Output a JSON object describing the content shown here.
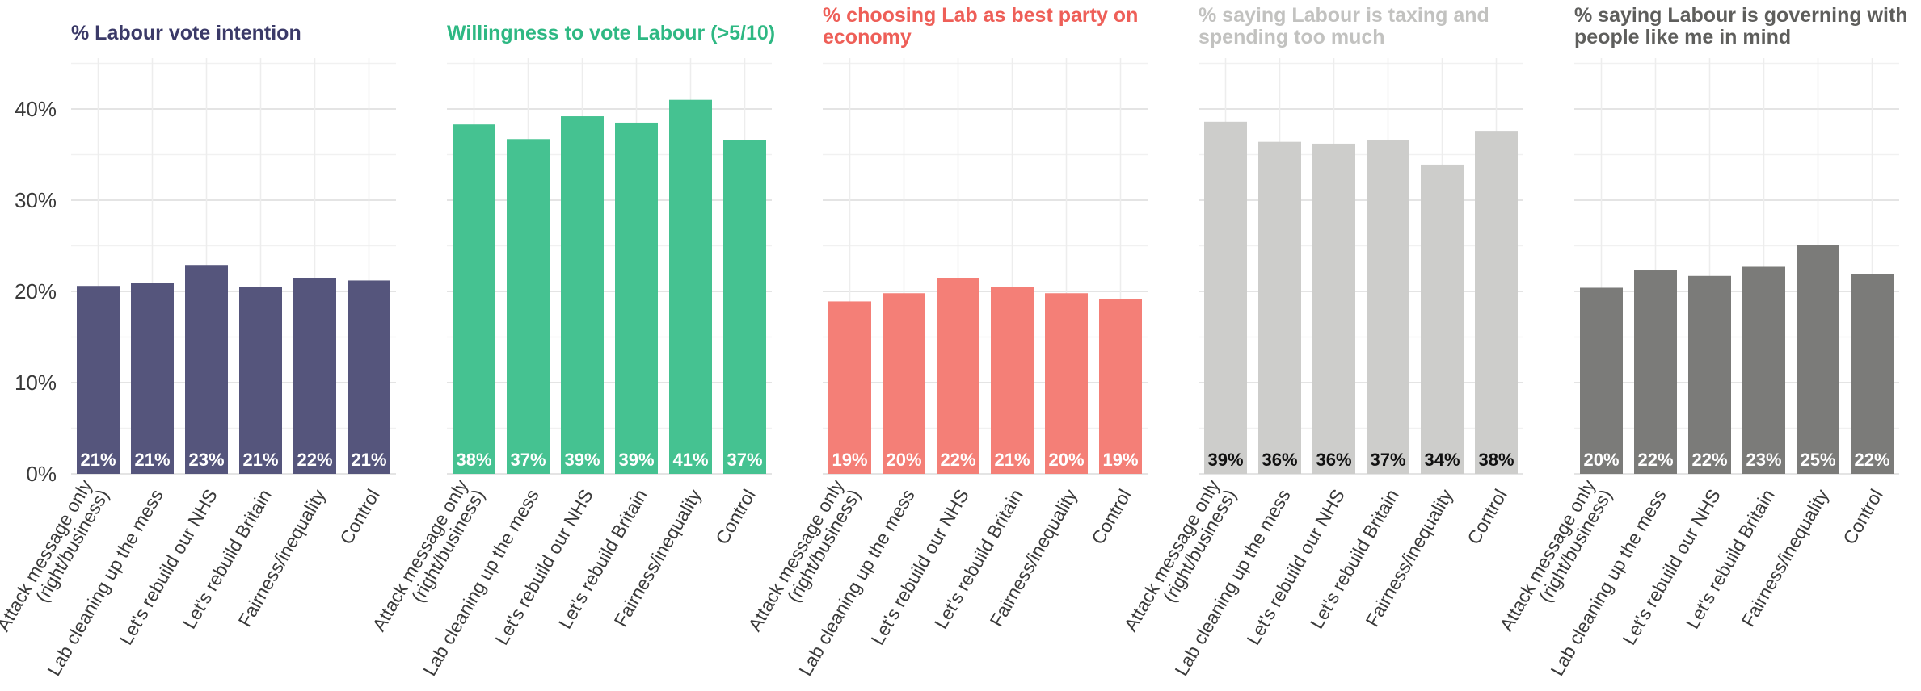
{
  "chart_data": [
    {
      "type": "bar",
      "title": "% Labour vote intention",
      "title_color": "#3b3a68",
      "bar_color": "#55557c",
      "label_color": "#ffffff",
      "categories": [
        "Attack message only (right/business)",
        "Lab cleaning up the mess",
        "Let's rebuild our NHS",
        "Let's rebuild Britain",
        "Fairness/inequality",
        "Control"
      ],
      "values": [
        20.6,
        20.9,
        22.9,
        20.5,
        21.5,
        21.2
      ],
      "data_labels": [
        "21%",
        "21%",
        "23%",
        "21%",
        "22%",
        "21%"
      ],
      "ylim": [
        0,
        45
      ],
      "yticks": [
        "0%",
        "10%",
        "20%",
        "30%",
        "40%"
      ],
      "grid": true
    },
    {
      "type": "bar",
      "title": "Willingness to vote Labour (>5/10)",
      "title_color": "#2eb883",
      "bar_color": "#45c291",
      "label_color": "#ffffff",
      "categories": [
        "Attack message only (right/business)",
        "Lab cleaning up the mess",
        "Let's rebuild our NHS",
        "Let's rebuild Britain",
        "Fairness/inequality",
        "Control"
      ],
      "values": [
        38.3,
        36.7,
        39.2,
        38.5,
        41.0,
        36.6
      ],
      "data_labels": [
        "38%",
        "37%",
        "39%",
        "39%",
        "41%",
        "37%"
      ],
      "ylim": [
        0,
        45
      ],
      "grid": true
    },
    {
      "type": "bar",
      "title": "% choosing Lab as best party on economy",
      "title_color": "#ee5f58",
      "bar_color": "#f47f77",
      "label_color": "#ffffff",
      "categories": [
        "Attack message only (right/business)",
        "Lab cleaning up the mess",
        "Let's rebuild our NHS",
        "Let's rebuild Britain",
        "Fairness/inequality",
        "Control"
      ],
      "values": [
        18.9,
        19.8,
        21.5,
        20.5,
        19.8,
        19.2
      ],
      "data_labels": [
        "19%",
        "20%",
        "22%",
        "21%",
        "20%",
        "19%"
      ],
      "ylim": [
        0,
        45
      ],
      "grid": true
    },
    {
      "type": "bar",
      "title": "% saying Labour is taxing and spending too much",
      "title_color": "#c2c2c0",
      "bar_color": "#cdcdcb",
      "label_color": "#111111",
      "categories": [
        "Attack message only (right/business)",
        "Lab cleaning up the mess",
        "Let's rebuild our NHS",
        "Let's rebuild Britain",
        "Fairness/inequality",
        "Control"
      ],
      "values": [
        38.6,
        36.4,
        36.2,
        36.6,
        33.9,
        37.6
      ],
      "data_labels": [
        "39%",
        "36%",
        "36%",
        "37%",
        "34%",
        "38%"
      ],
      "ylim": [
        0,
        45
      ],
      "grid": true
    },
    {
      "type": "bar",
      "title": "% saying Labour is governing with people like me in mind",
      "title_color": "#5e5e5c",
      "bar_color": "#7b7b79",
      "label_color": "#ffffff",
      "categories": [
        "Attack message only (right/business)",
        "Lab cleaning up the mess",
        "Let's rebuild our NHS",
        "Let's rebuild Britain",
        "Fairness/inequality",
        "Control"
      ],
      "values": [
        20.4,
        22.3,
        21.7,
        22.7,
        25.1,
        21.9
      ],
      "data_labels": [
        "20%",
        "22%",
        "22%",
        "23%",
        "25%",
        "22%"
      ],
      "ylim": [
        0,
        45
      ],
      "grid": true
    }
  ]
}
